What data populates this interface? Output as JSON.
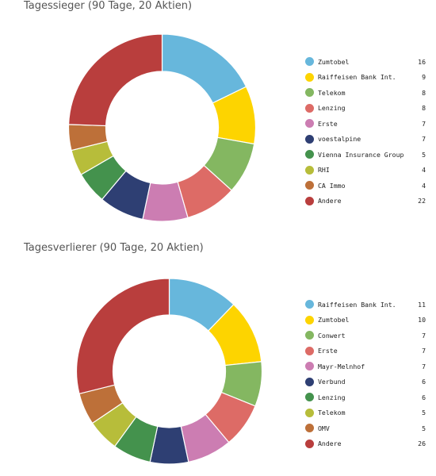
{
  "chart_data": [
    {
      "type": "pie",
      "title": "Tagessieger (90 Tage, 20 Aktien)",
      "categories": [
        "Zumtobel",
        "Raiffeisen Bank Int.",
        "Telekom",
        "Lenzing",
        "Erste",
        "voestalpine",
        "Vienna Insurance Group",
        "RHI",
        "CA Immo",
        "Andere"
      ],
      "values": [
        16,
        9,
        8,
        8,
        7,
        7,
        5,
        4,
        4,
        22
      ],
      "colors": [
        "#67b7dc",
        "#fdd400",
        "#84b761",
        "#dd6b66",
        "#cc7db2",
        "#2e3f73",
        "#44924d",
        "#b7bd3a",
        "#bd7039",
        "#b93e3d"
      ],
      "legend": "right"
    },
    {
      "type": "pie",
      "title": "Tagesverlierer (90 Tage, 20 Aktien)",
      "categories": [
        "Raiffeisen Bank Int.",
        "Zumtobel",
        "Conwert",
        "Erste",
        "Mayr-Melnhof",
        "Verbund",
        "Lenzing",
        "Telekom",
        "OMV",
        "Andere"
      ],
      "values": [
        11,
        10,
        7,
        7,
        7,
        6,
        6,
        5,
        5,
        26
      ],
      "colors": [
        "#67b7dc",
        "#fdd400",
        "#84b761",
        "#dd6b66",
        "#cc7db2",
        "#2e3f73",
        "#44924d",
        "#b7bd3a",
        "#bd7039",
        "#b93e3d"
      ],
      "legend": "right"
    }
  ]
}
